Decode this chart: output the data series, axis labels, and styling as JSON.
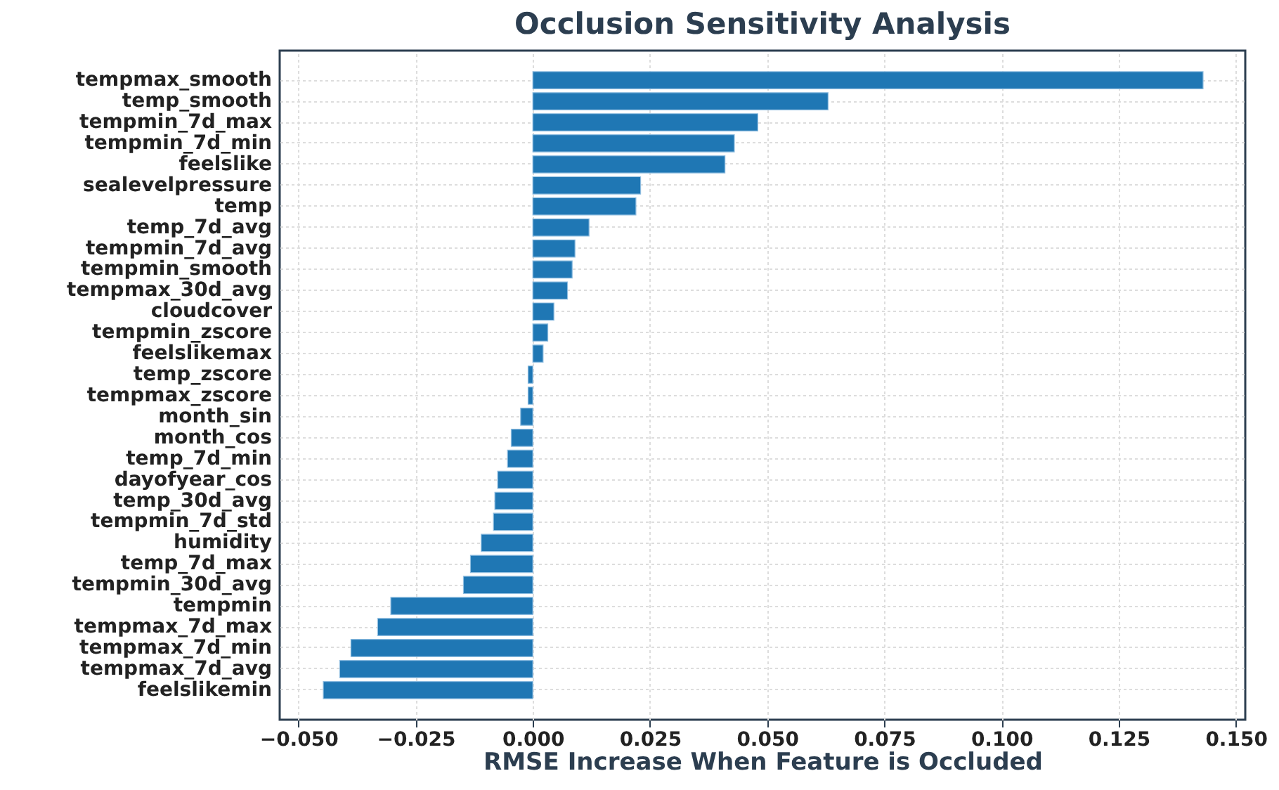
{
  "chart_data": {
    "type": "bar",
    "orientation": "horizontal",
    "title": "Occlusion Sensitivity Analysis",
    "xlabel": "RMSE Increase When Feature is Occluded",
    "categories": [
      "tempmax_smooth",
      "temp_smooth",
      "tempmin_7d_max",
      "tempmin_7d_min",
      "feelslike",
      "sealevelpressure",
      "temp",
      "temp_7d_avg",
      "tempmin_7d_avg",
      "tempmin_smooth",
      "tempmax_30d_avg",
      "cloudcover",
      "tempmin_zscore",
      "feelslikemax",
      "temp_zscore",
      "tempmax_zscore",
      "month_sin",
      "month_cos",
      "temp_7d_min",
      "dayofyear_cos",
      "temp_30d_avg",
      "tempmin_7d_std",
      "humidity",
      "temp_7d_max",
      "tempmin_30d_avg",
      "tempmin",
      "tempmax_7d_max",
      "tempmax_7d_min",
      "tempmax_7d_avg",
      "feelslikemin"
    ],
    "values": [
      0.143,
      0.063,
      0.048,
      0.043,
      0.041,
      0.023,
      0.022,
      0.012,
      0.009,
      0.0084,
      0.0074,
      0.0045,
      0.0032,
      0.0022,
      -0.001,
      -0.001,
      -0.0026,
      -0.0046,
      -0.0054,
      -0.0075,
      -0.0081,
      -0.0084,
      -0.011,
      -0.0133,
      -0.0148,
      -0.0303,
      -0.0331,
      -0.0388,
      -0.0412,
      -0.0447
    ],
    "color": "#1f77b4",
    "xlim": [
      -0.054,
      0.152
    ],
    "xticks": [
      {
        "value": -0.05,
        "label": "−0.050"
      },
      {
        "value": -0.025,
        "label": "−0.025"
      },
      {
        "value": 0,
        "label": "0.000"
      },
      {
        "value": 0.025,
        "label": "0.025"
      },
      {
        "value": 0.05,
        "label": "0.050"
      },
      {
        "value": 0.075,
        "label": "0.075"
      },
      {
        "value": 0.1,
        "label": "0.100"
      },
      {
        "value": 0.125,
        "label": "0.125"
      },
      {
        "value": 0.15,
        "label": "0.150"
      }
    ],
    "grid": true
  }
}
